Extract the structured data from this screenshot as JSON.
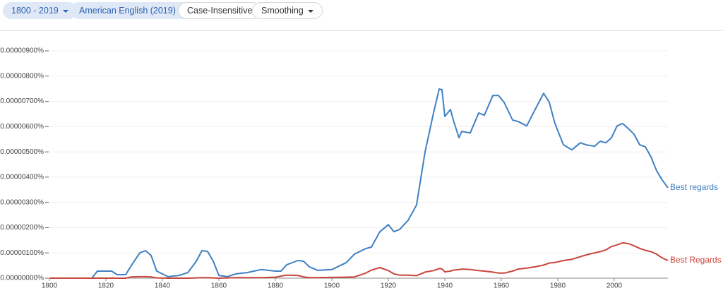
{
  "controls": [
    "1800 - 2019",
    "American English (2019)",
    "Case-Insensitive",
    "Smoothing"
  ],
  "chart_data": {
    "type": "line",
    "x": [
      1800,
      1815,
      1817,
      1822,
      1824,
      1827,
      1829,
      1832,
      1834,
      1836,
      1838,
      1842,
      1846,
      1849,
      1852,
      1854,
      1856,
      1858,
      1860,
      1863,
      1866,
      1870,
      1875,
      1880,
      1882,
      1884,
      1888,
      1890,
      1892,
      1895,
      1900,
      1905,
      1908,
      1912,
      1914,
      1917,
      1920,
      1922,
      1924,
      1927,
      1930,
      1933,
      1936,
      1938,
      1939,
      1940,
      1942,
      1943,
      1945,
      1946,
      1949,
      1952,
      1954,
      1957,
      1959,
      1961,
      1964,
      1966,
      1969,
      1972,
      1975,
      1977,
      1979,
      1982,
      1985,
      1988,
      1990,
      1993,
      1995,
      1997,
      1999,
      2001,
      2003,
      2005,
      2007,
      2009,
      2011,
      2013,
      2015,
      2017,
      2019
    ],
    "series": [
      {
        "name": "Best regards",
        "color": "#3f80c4",
        "values": [
          0,
          0,
          2.8e-07,
          2.8e-07,
          1.4e-07,
          1.4e-07,
          5e-07,
          1e-06,
          1.09e-06,
          9e-07,
          2.8e-07,
          6e-08,
          1.1e-07,
          2.2e-07,
          6.7e-07,
          1.09e-06,
          1.06e-06,
          6.7e-07,
          1.1e-07,
          6e-08,
          1.7e-07,
          2.2e-07,
          3.4e-07,
          2.8e-07,
          2.8e-07,
          5.3e-07,
          7e-07,
          6.7e-07,
          4.5e-07,
          3.1e-07,
          3.4e-07,
          6.1e-07,
          9.5e-07,
          1.17e-06,
          1.23e-06,
          1.84e-06,
          2.12e-06,
          1.84e-06,
          1.93e-06,
          2.29e-06,
          2.9e-06,
          5e-06,
          6.54e-06,
          7.49e-06,
          7.46e-06,
          6.4e-06,
          6.68e-06,
          6.26e-06,
          5.56e-06,
          5.81e-06,
          5.75e-06,
          6.54e-06,
          6.45e-06,
          7.23e-06,
          7.23e-06,
          6.96e-06,
          6.26e-06,
          6.2e-06,
          6.03e-06,
          6.68e-06,
          7.32e-06,
          6.96e-06,
          6.12e-06,
          5.28e-06,
          5.08e-06,
          5.36e-06,
          5.28e-06,
          5.22e-06,
          5.42e-06,
          5.36e-06,
          5.56e-06,
          6.03e-06,
          6.12e-06,
          5.92e-06,
          5.7e-06,
          5.28e-06,
          5.2e-06,
          4.8e-06,
          4.25e-06,
          3.88e-06,
          3.58e-06
        ]
      },
      {
        "name": "Best Regards",
        "color": "#c9453c",
        "values": [
          0,
          0,
          0,
          0,
          0,
          0,
          5e-08,
          6e-08,
          6e-08,
          5e-08,
          1e-08,
          0,
          0,
          0,
          1e-08,
          2e-08,
          2e-08,
          1e-08,
          0,
          1e-08,
          2e-08,
          2e-08,
          2e-08,
          4e-08,
          8e-08,
          1.2e-07,
          1.1e-07,
          5e-08,
          2e-08,
          2e-08,
          3e-08,
          4e-08,
          5e-08,
          2e-07,
          3.2e-07,
          4.2e-07,
          3e-07,
          1.7e-07,
          1.2e-07,
          1.2e-07,
          1e-07,
          2.4e-07,
          3e-07,
          3.8e-07,
          3.7e-07,
          2.5e-07,
          2.8e-07,
          3.2e-07,
          3.4e-07,
          3.6e-07,
          3.4e-07,
          3e-07,
          2.8e-07,
          2.4e-07,
          2e-07,
          2e-07,
          2.8e-07,
          3.6e-07,
          4e-07,
          4.5e-07,
          5.2e-07,
          6e-07,
          6.2e-07,
          7e-07,
          7.5e-07,
          8.5e-07,
          9.2e-07,
          1e-06,
          1.05e-06,
          1.12e-06,
          1.25e-06,
          1.32e-06,
          1.4e-06,
          1.37e-06,
          1.28e-06,
          1.18e-06,
          1.1e-06,
          1.05e-06,
          9.5e-07,
          8e-07,
          7e-07
        ]
      }
    ],
    "xlim": [
      1800,
      2019
    ],
    "xticks": [
      1800,
      1820,
      1840,
      1860,
      1880,
      1900,
      1920,
      1940,
      1960,
      1980,
      2000
    ],
    "ylim": [
      0,
      9e-06
    ],
    "yticks": [
      {
        "value": 0,
        "label": "0.00000000%"
      },
      {
        "value": 1e-06,
        "label": "0.00000100%"
      },
      {
        "value": 2e-06,
        "label": "0.00000200%"
      },
      {
        "value": 3e-06,
        "label": "0.00000300%"
      },
      {
        "value": 4e-06,
        "label": "0.00000400%"
      },
      {
        "value": 5e-06,
        "label": "0.00000500%"
      },
      {
        "value": 6e-06,
        "label": "0.00000600%"
      },
      {
        "value": 7e-06,
        "label": "0.00000700%"
      },
      {
        "value": 8e-06,
        "label": "0.00000800%"
      },
      {
        "value": 9e-06,
        "label": "0.00000900%"
      }
    ],
    "grid": true
  }
}
